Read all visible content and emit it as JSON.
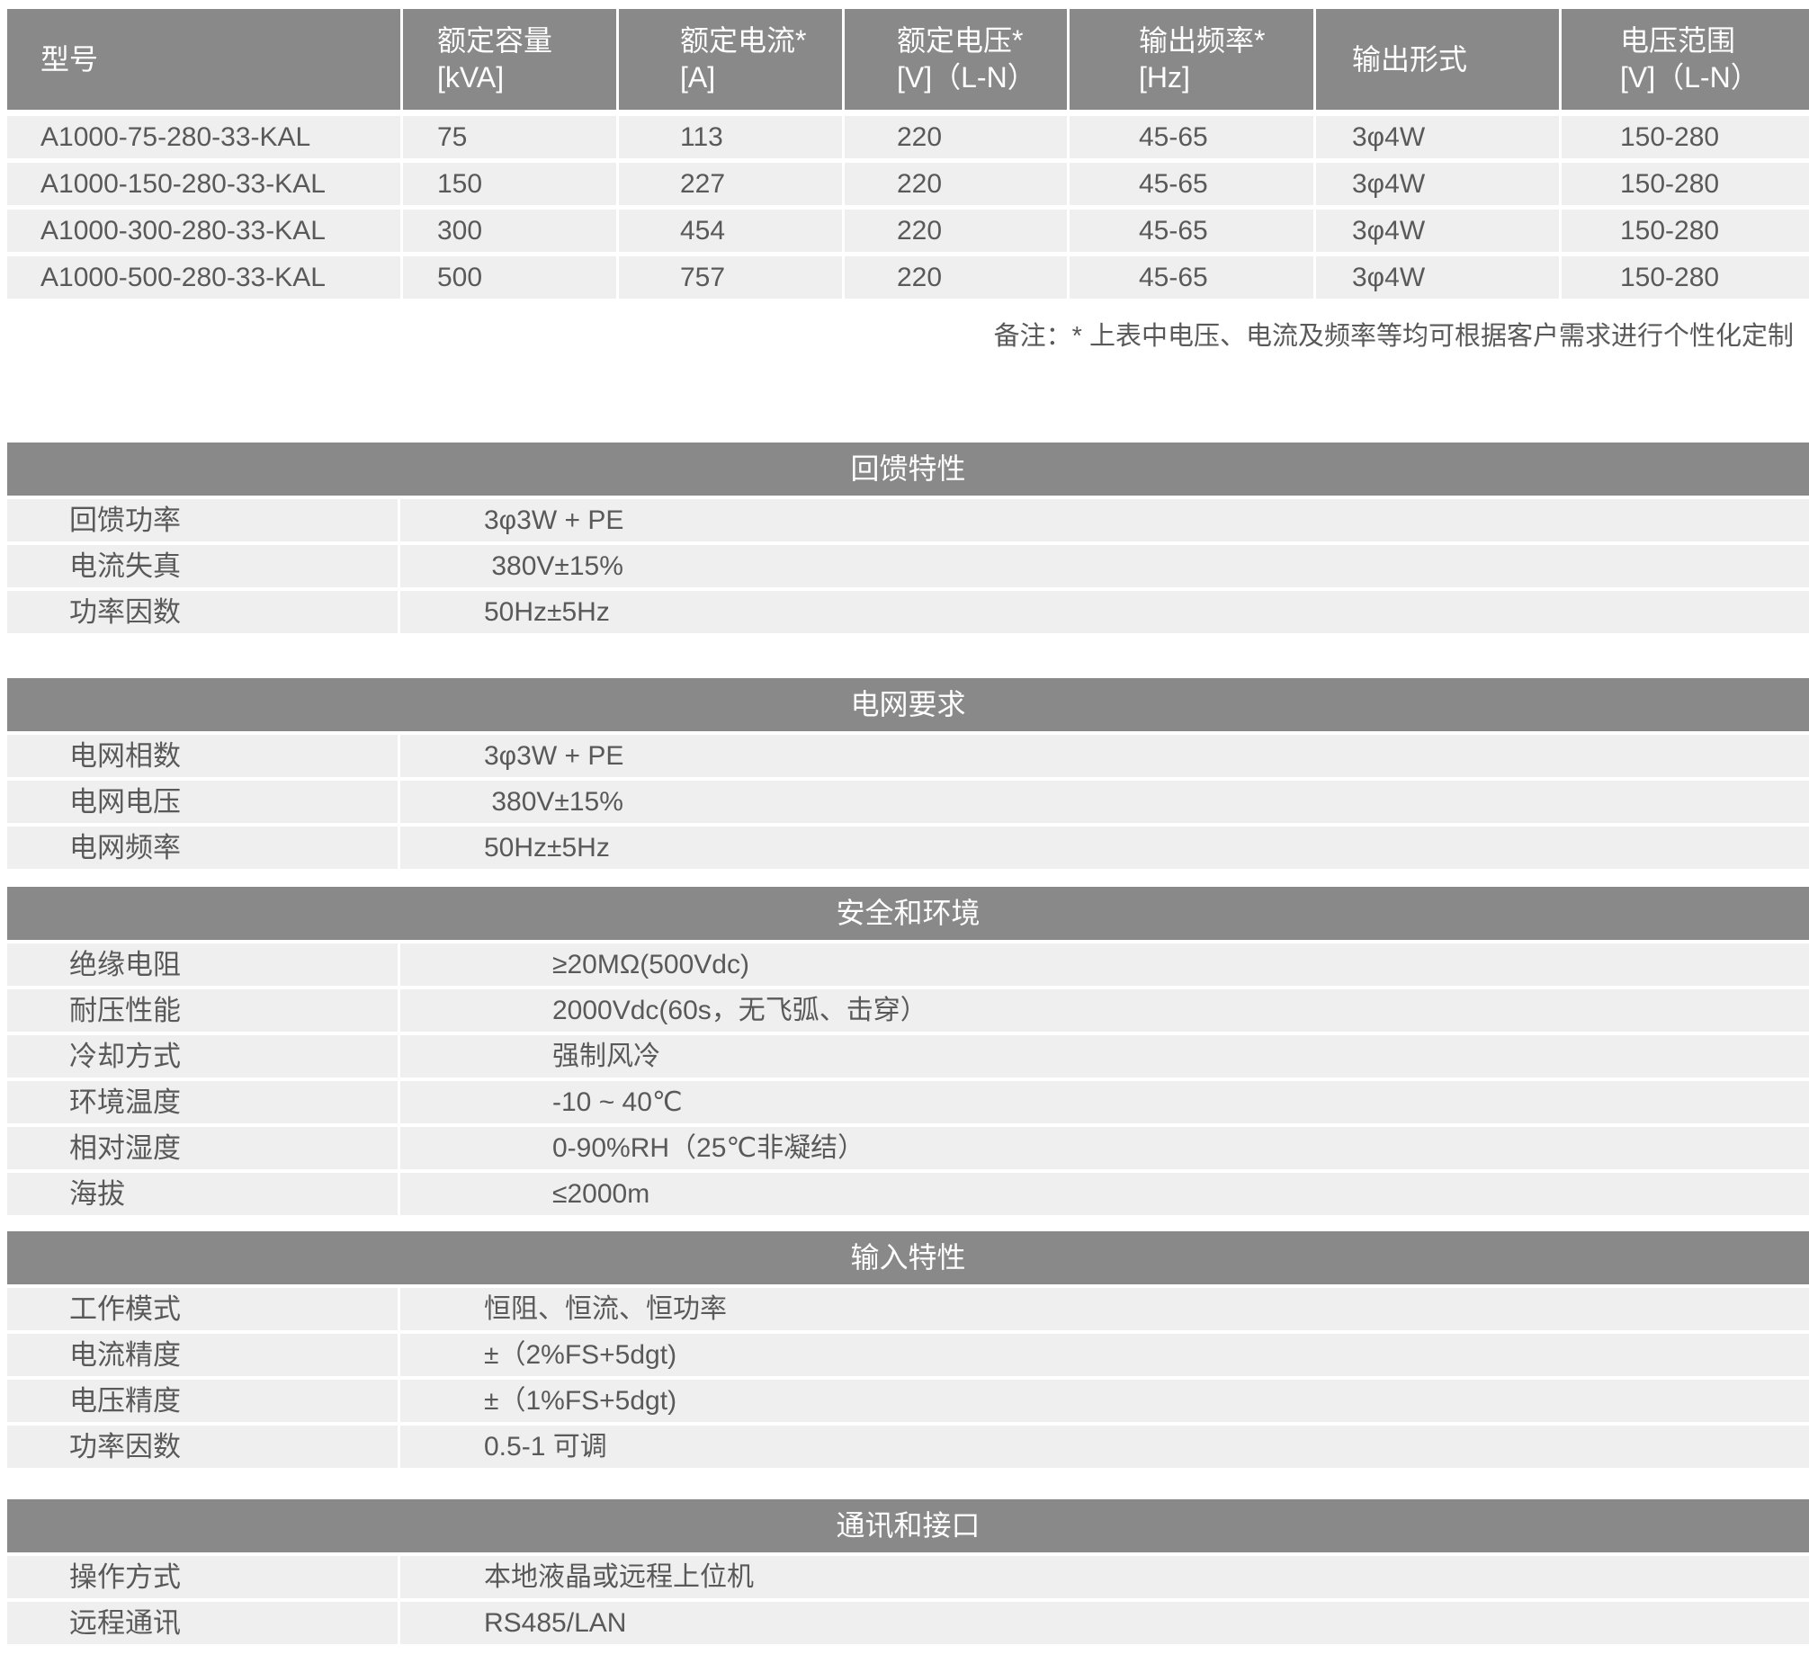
{
  "spec_table": {
    "columns": [
      {
        "label": "型号"
      },
      {
        "label": "额定容量\n[kVA]"
      },
      {
        "label": "额定电流*\n[A]"
      },
      {
        "label": "额定电压*\n[V]（L-N）"
      },
      {
        "label": "输出频率*\n[Hz]"
      },
      {
        "label": "输出形式"
      },
      {
        "label": "电压范围\n[V]（L-N）"
      }
    ],
    "rows": [
      [
        "A1000-75-280-33-KAL",
        "75",
        "113",
        "220",
        "45-65",
        "3φ4W",
        "150-280"
      ],
      [
        "A1000-150-280-33-KAL",
        "150",
        "227",
        "220",
        "45-65",
        "3φ4W",
        "150-280"
      ],
      [
        "A1000-300-280-33-KAL",
        "300",
        "454",
        "220",
        "45-65",
        "3φ4W",
        "150-280"
      ],
      [
        "A1000-500-280-33-KAL",
        "500",
        "757",
        "220",
        "45-65",
        "3φ4W",
        "150-280"
      ]
    ]
  },
  "note": "备注：* 上表中电压、电流及频率等均可根据客户需求进行个性化定制",
  "sections": [
    {
      "title": "回馈特性",
      "indent": "normal",
      "rows": [
        [
          "回馈功率",
          "3φ3W + PE"
        ],
        [
          "电流失真",
          " 380V±15%"
        ],
        [
          "功率因数",
          "50Hz±5Hz"
        ]
      ]
    },
    {
      "title": "电网要求",
      "indent": "normal",
      "rows": [
        [
          "电网相数",
          "3φ3W + PE"
        ],
        [
          "电网电压",
          " 380V±15%"
        ],
        [
          "电网频率",
          "50Hz±5Hz"
        ]
      ]
    },
    {
      "title": "安全和环境",
      "indent": "wide",
      "rows": [
        [
          "绝缘电阻",
          "≥20MΩ(500Vdc)"
        ],
        [
          "耐压性能",
          "2000Vdc(60s，无飞弧、击穿）"
        ],
        [
          "冷却方式",
          "强制风冷"
        ],
        [
          "环境温度",
          "-10 ~ 40℃"
        ],
        [
          "相对湿度",
          "0-90%RH（25℃非凝结）"
        ],
        [
          "海拔",
          "≤2000m"
        ]
      ]
    },
    {
      "title": "输入特性",
      "indent": "normal",
      "rows": [
        [
          "工作模式",
          "恒阻、恒流、恒功率"
        ],
        [
          "电流精度",
          "±（2%FS+5dgt)"
        ],
        [
          "电压精度",
          "±（1%FS+5dgt)"
        ],
        [
          "功率因数",
          "0.5-1 可调"
        ]
      ]
    },
    {
      "title": "通讯和接口",
      "indent": "normal",
      "rows": [
        [
          "操作方式",
          "本地液晶或远程上位机"
        ],
        [
          "远程通讯",
          "RS485/LAN"
        ]
      ]
    }
  ],
  "colors": {
    "header_gray": "#898989",
    "row_bg": "#efefef",
    "text": "#595959",
    "header_text": "#ffffff"
  }
}
